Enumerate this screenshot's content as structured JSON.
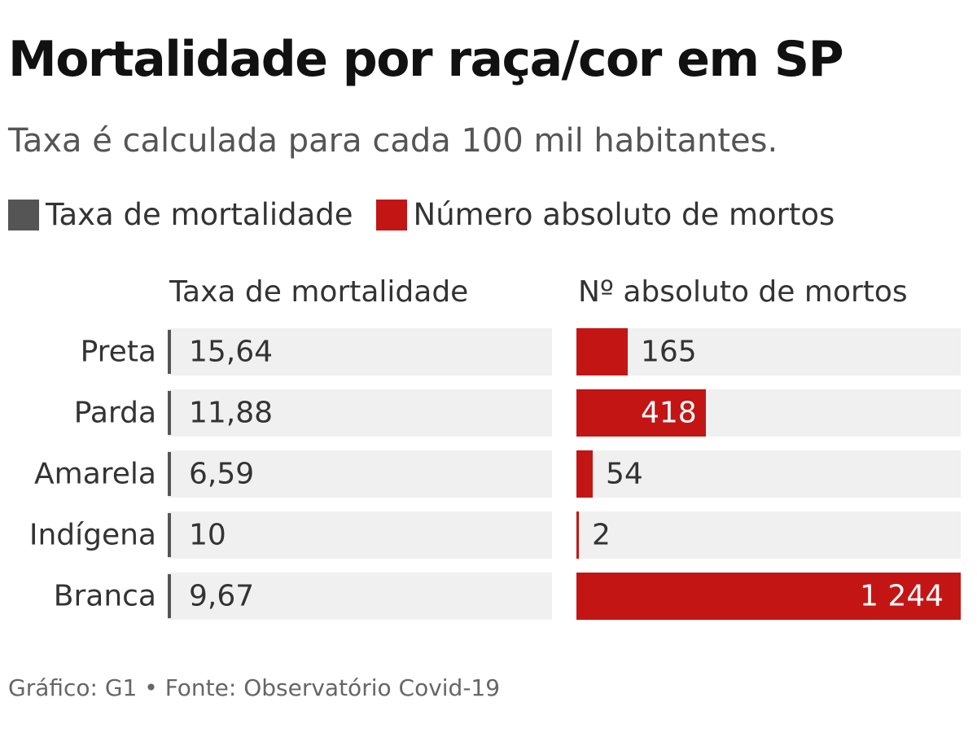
{
  "title": "Mortalidade por raça/cor em SP",
  "subtitle": "Taxa é calculada para cada 100 mil habitantes.",
  "legend": [
    {
      "label": "Taxa de mortalidade",
      "color": "#555555"
    },
    {
      "label": "Número absoluto de mortos",
      "color": "#c41515"
    }
  ],
  "footer": "Gráfico: G1 • Fonte: Observatório Covid-19",
  "chart_data": {
    "type": "bar",
    "title": "Mortalidade por raça/cor em SP",
    "subtitle": "Taxa é calculada para cada 100 mil habitantes.",
    "columns": {
      "rate": "Taxa de mortalidade",
      "absolute": "Nº absoluto de mortos"
    },
    "categories": [
      "Preta",
      "Parda",
      "Amarela",
      "Indígena",
      "Branca"
    ],
    "series": [
      {
        "name": "Taxa de mortalidade",
        "values": [
          15.64,
          11.88,
          6.59,
          10,
          9.67
        ],
        "labels": [
          "15,64",
          "11,88",
          "6,59",
          "10",
          "9,67"
        ],
        "color": "#555555"
      },
      {
        "name": "Número absoluto de mortos",
        "values": [
          165,
          418,
          54,
          2,
          1244
        ],
        "labels": [
          "165",
          "418",
          "54",
          "2",
          "1 244"
        ],
        "color": "#c41515"
      }
    ],
    "legend": "top-left",
    "grid": false
  }
}
